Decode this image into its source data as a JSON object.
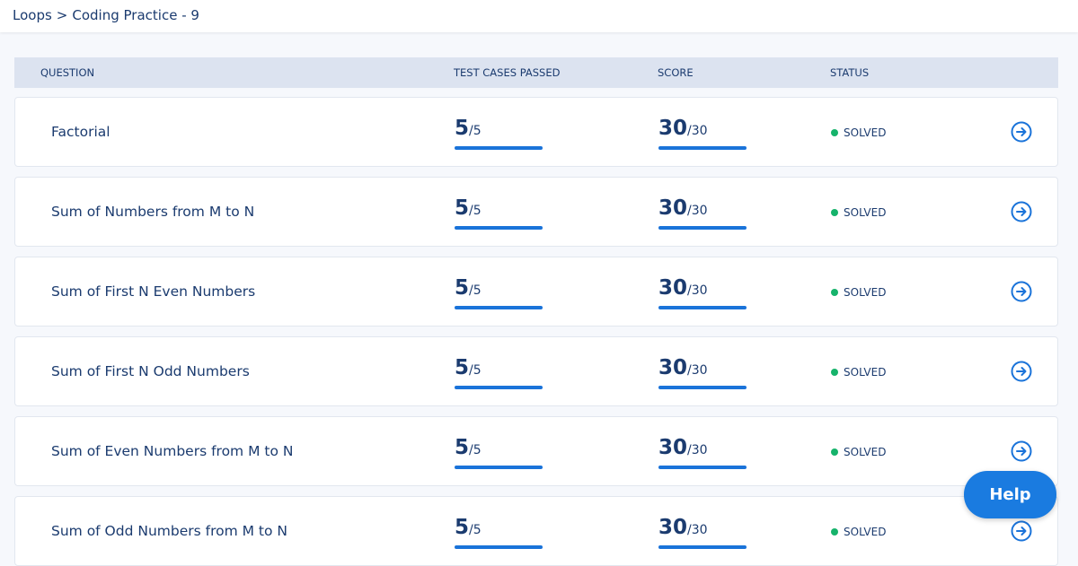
{
  "breadcrumb": {
    "items": [
      "Loops",
      "Coding Practice - 9"
    ],
    "separator": ">"
  },
  "table": {
    "headers": [
      "QUESTION",
      "TEST CASES PASSED",
      "SCORE",
      "STATUS"
    ],
    "fraction_separator": "/",
    "rows": [
      {
        "question": "Factorial",
        "tests": {
          "passed": 5,
          "total": 5
        },
        "score": {
          "earned": 30,
          "max": 30
        },
        "status": "SOLVED"
      },
      {
        "question": "Sum of Numbers from M to N",
        "tests": {
          "passed": 5,
          "total": 5
        },
        "score": {
          "earned": 30,
          "max": 30
        },
        "status": "SOLVED"
      },
      {
        "question": "Sum of First N Even Numbers",
        "tests": {
          "passed": 5,
          "total": 5
        },
        "score": {
          "earned": 30,
          "max": 30
        },
        "status": "SOLVED"
      },
      {
        "question": "Sum of First N Odd Numbers",
        "tests": {
          "passed": 5,
          "total": 5
        },
        "score": {
          "earned": 30,
          "max": 30
        },
        "status": "SOLVED"
      },
      {
        "question": "Sum of Even Numbers from M to N",
        "tests": {
          "passed": 5,
          "total": 5
        },
        "score": {
          "earned": 30,
          "max": 30
        },
        "status": "SOLVED"
      },
      {
        "question": "Sum of Odd Numbers from M to N",
        "tests": {
          "passed": 5,
          "total": 5
        },
        "score": {
          "earned": 30,
          "max": 30
        },
        "status": "SOLVED"
      }
    ]
  },
  "help_button": "Help"
}
